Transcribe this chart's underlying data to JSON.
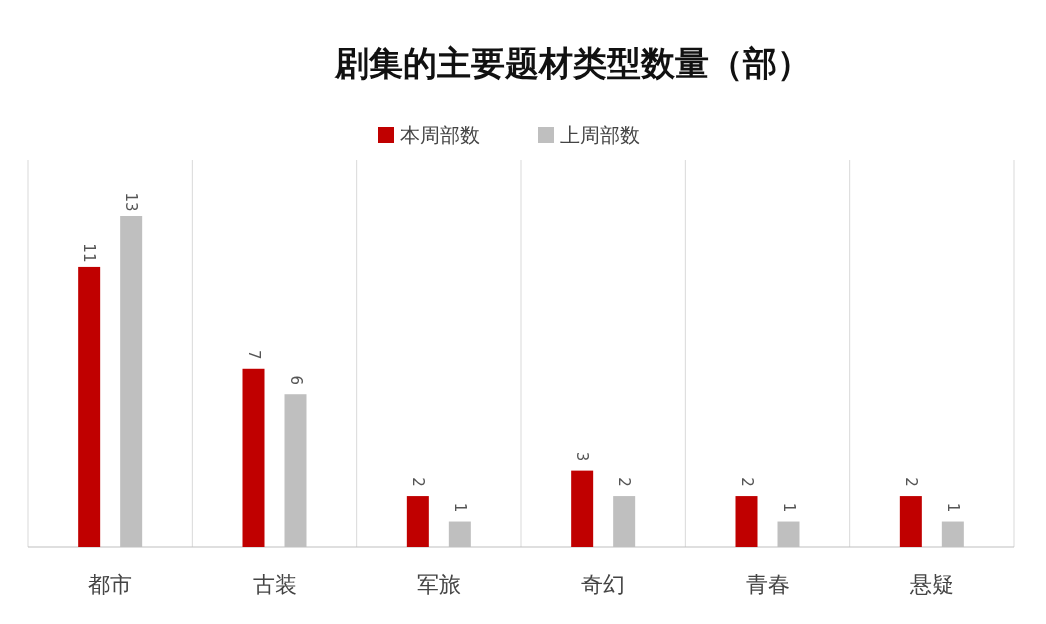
{
  "chart_data": {
    "type": "bar",
    "title": "剧集的主要题材类型数量（部）",
    "categories": [
      "都市",
      "古装",
      "军旅",
      "奇幻",
      "青春",
      "悬疑"
    ],
    "series": [
      {
        "name": "本周部数",
        "color": "#c00000",
        "values": [
          11,
          7,
          2,
          3,
          2,
          2
        ]
      },
      {
        "name": "上周部数",
        "color": "#bfbfbf",
        "values": [
          13,
          6,
          1,
          2,
          1,
          1
        ]
      }
    ],
    "data_labels": true,
    "grid": "x",
    "legend": "top"
  }
}
